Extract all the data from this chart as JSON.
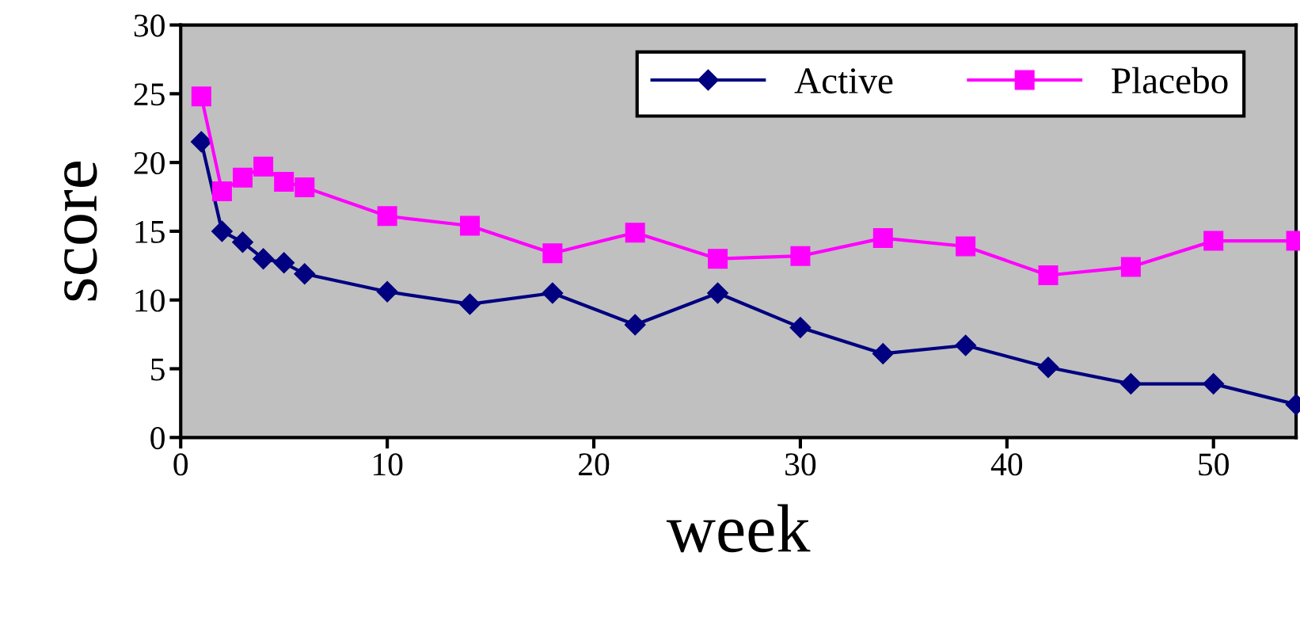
{
  "chart_data": {
    "type": "line",
    "xlabel": "week",
    "ylabel": "score",
    "x": [
      1,
      2,
      3,
      4,
      5,
      6,
      10,
      14,
      18,
      22,
      26,
      30,
      34,
      38,
      42,
      46,
      50,
      54
    ],
    "series": [
      {
        "name": "Active",
        "color": "#000080",
        "marker": "diamond",
        "values": [
          21.5,
          15.0,
          14.2,
          13.0,
          12.7,
          11.9,
          10.6,
          9.7,
          10.5,
          8.2,
          10.5,
          8.0,
          6.1,
          6.7,
          5.1,
          3.9,
          3.9,
          2.4
        ]
      },
      {
        "name": "Placebo",
        "color": "#ff00ff",
        "marker": "square",
        "values": [
          24.8,
          17.9,
          18.9,
          19.7,
          18.6,
          18.2,
          16.1,
          15.4,
          13.4,
          14.9,
          13.0,
          13.2,
          14.5,
          13.9,
          11.8,
          12.4,
          14.3,
          14.3
        ]
      }
    ],
    "xlim": [
      0,
      54
    ],
    "xticks": [
      0,
      10,
      20,
      30,
      40,
      50
    ],
    "ylim": [
      0,
      30
    ],
    "yticks": [
      0,
      5,
      10,
      15,
      20,
      25,
      30
    ],
    "grid": false,
    "legend": "top right",
    "line_style": "solid"
  }
}
